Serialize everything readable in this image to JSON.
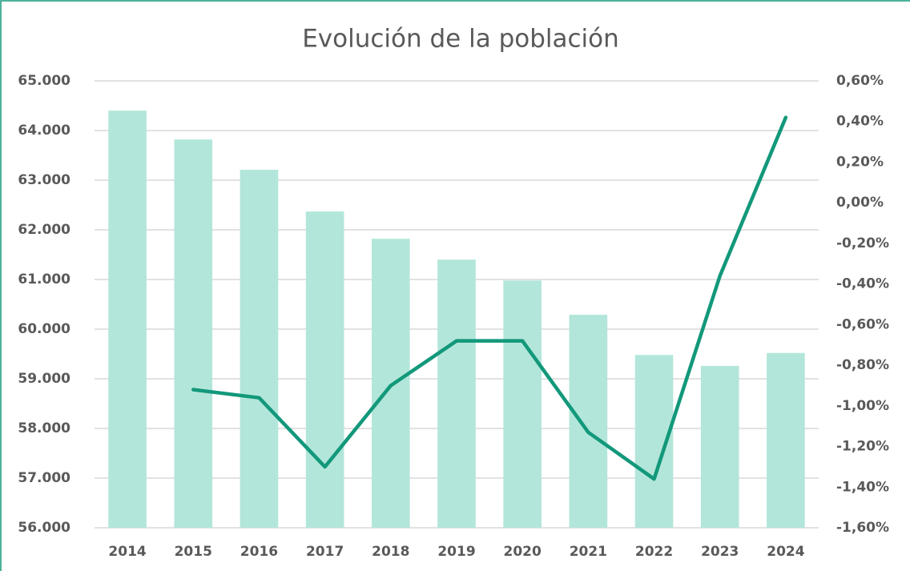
{
  "chart_data": {
    "type": "bar-line",
    "title": "Evolución de la población",
    "categories": [
      "2014",
      "2015",
      "2016",
      "2017",
      "2018",
      "2019",
      "2020",
      "2021",
      "2022",
      "2023",
      "2024"
    ],
    "series": [
      {
        "type": "bar",
        "color": "#b3e6da",
        "values": [
          64400,
          63820,
          63210,
          62370,
          61820,
          61400,
          60980,
          60290,
          59480,
          59260,
          59520
        ]
      },
      {
        "type": "line",
        "axis": "y2",
        "color": "#12987a",
        "values": [
          null,
          -0.92,
          -0.96,
          -1.3,
          -0.9,
          -0.68,
          -0.68,
          -1.13,
          -1.36,
          -0.36,
          0.42
        ]
      }
    ],
    "ylim": [
      56000,
      65000
    ],
    "yticks": [
      {
        "value": 56000,
        "label": "56.000"
      },
      {
        "value": 57000,
        "label": "57.000"
      },
      {
        "value": 58000,
        "label": "58.000"
      },
      {
        "value": 59000,
        "label": "59.000"
      },
      {
        "value": 60000,
        "label": "60.000"
      },
      {
        "value": 61000,
        "label": "61.000"
      },
      {
        "value": 62000,
        "label": "62.000"
      },
      {
        "value": 63000,
        "label": "63.000"
      },
      {
        "value": 64000,
        "label": "64.000"
      },
      {
        "value": 65000,
        "label": "65.000"
      }
    ],
    "y2lim": [
      -1.6,
      0.6
    ],
    "y2ticks": [
      {
        "value": -1.6,
        "label": "-1,60%"
      },
      {
        "value": -1.4,
        "label": "-1,40%"
      },
      {
        "value": -1.2,
        "label": "-1,20%"
      },
      {
        "value": -1.0,
        "label": "-1,00%"
      },
      {
        "value": -0.8,
        "label": "-0,80%"
      },
      {
        "value": -0.6,
        "label": "-0,60%"
      },
      {
        "value": -0.4,
        "label": "-0,40%"
      },
      {
        "value": -0.2,
        "label": "-0,20%"
      },
      {
        "value": 0,
        "label": "0,00%"
      },
      {
        "value": 0.2,
        "label": "0,20%"
      },
      {
        "value": 0.4,
        "label": "0,40%"
      },
      {
        "value": 0.6,
        "label": "0,60%"
      }
    ],
    "grid": true
  }
}
